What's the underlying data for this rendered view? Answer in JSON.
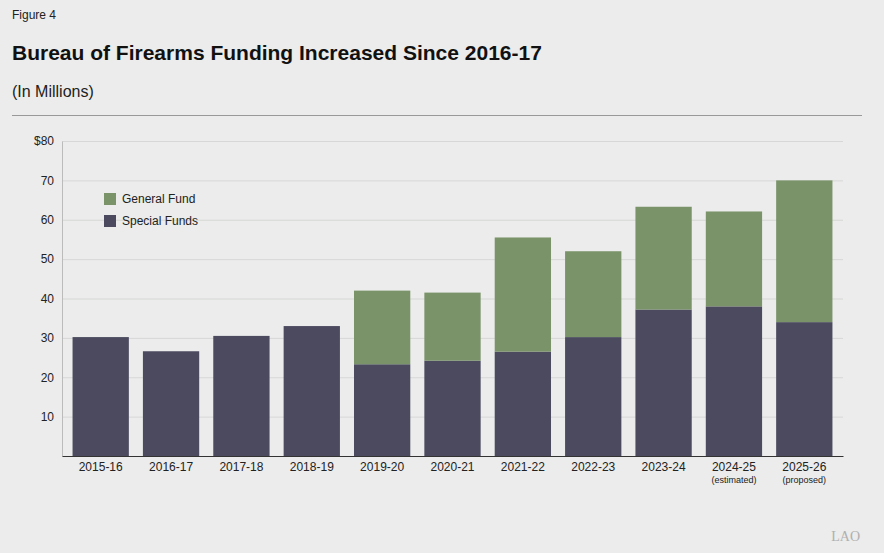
{
  "chart_data": {
    "type": "bar",
    "figure_label": "Figure 4",
    "title": "Bureau of Firearms Funding Increased Since 2016-17",
    "subtitle": "(In Millions)",
    "footer": "LAO",
    "categories": [
      "2015-16",
      "2016-17",
      "2017-18",
      "2018-19",
      "2019-20",
      "2020-21",
      "2021-22",
      "2022-23",
      "2023-24",
      "2024-25\n(estimated)",
      "2025-26\n(proposed)"
    ],
    "series": [
      {
        "name": "Special Funds",
        "color": "#4b4a5f",
        "values": [
          30.2,
          26.6,
          30.5,
          33,
          23.3,
          24.2,
          26.5,
          30.2,
          37.2,
          38,
          34
        ]
      },
      {
        "name": "General Fund",
        "color": "#7a9369",
        "values": [
          null,
          null,
          null,
          null,
          18.7,
          17.3,
          29,
          21.8,
          26.1,
          24.1,
          36
        ]
      }
    ],
    "stacked": true,
    "ylim": [
      0,
      80
    ],
    "yticks": [
      10,
      20,
      30,
      40,
      50,
      60,
      70,
      {
        "value": 80,
        "label": "$80"
      }
    ],
    "grid": true,
    "legend": "top-left"
  }
}
